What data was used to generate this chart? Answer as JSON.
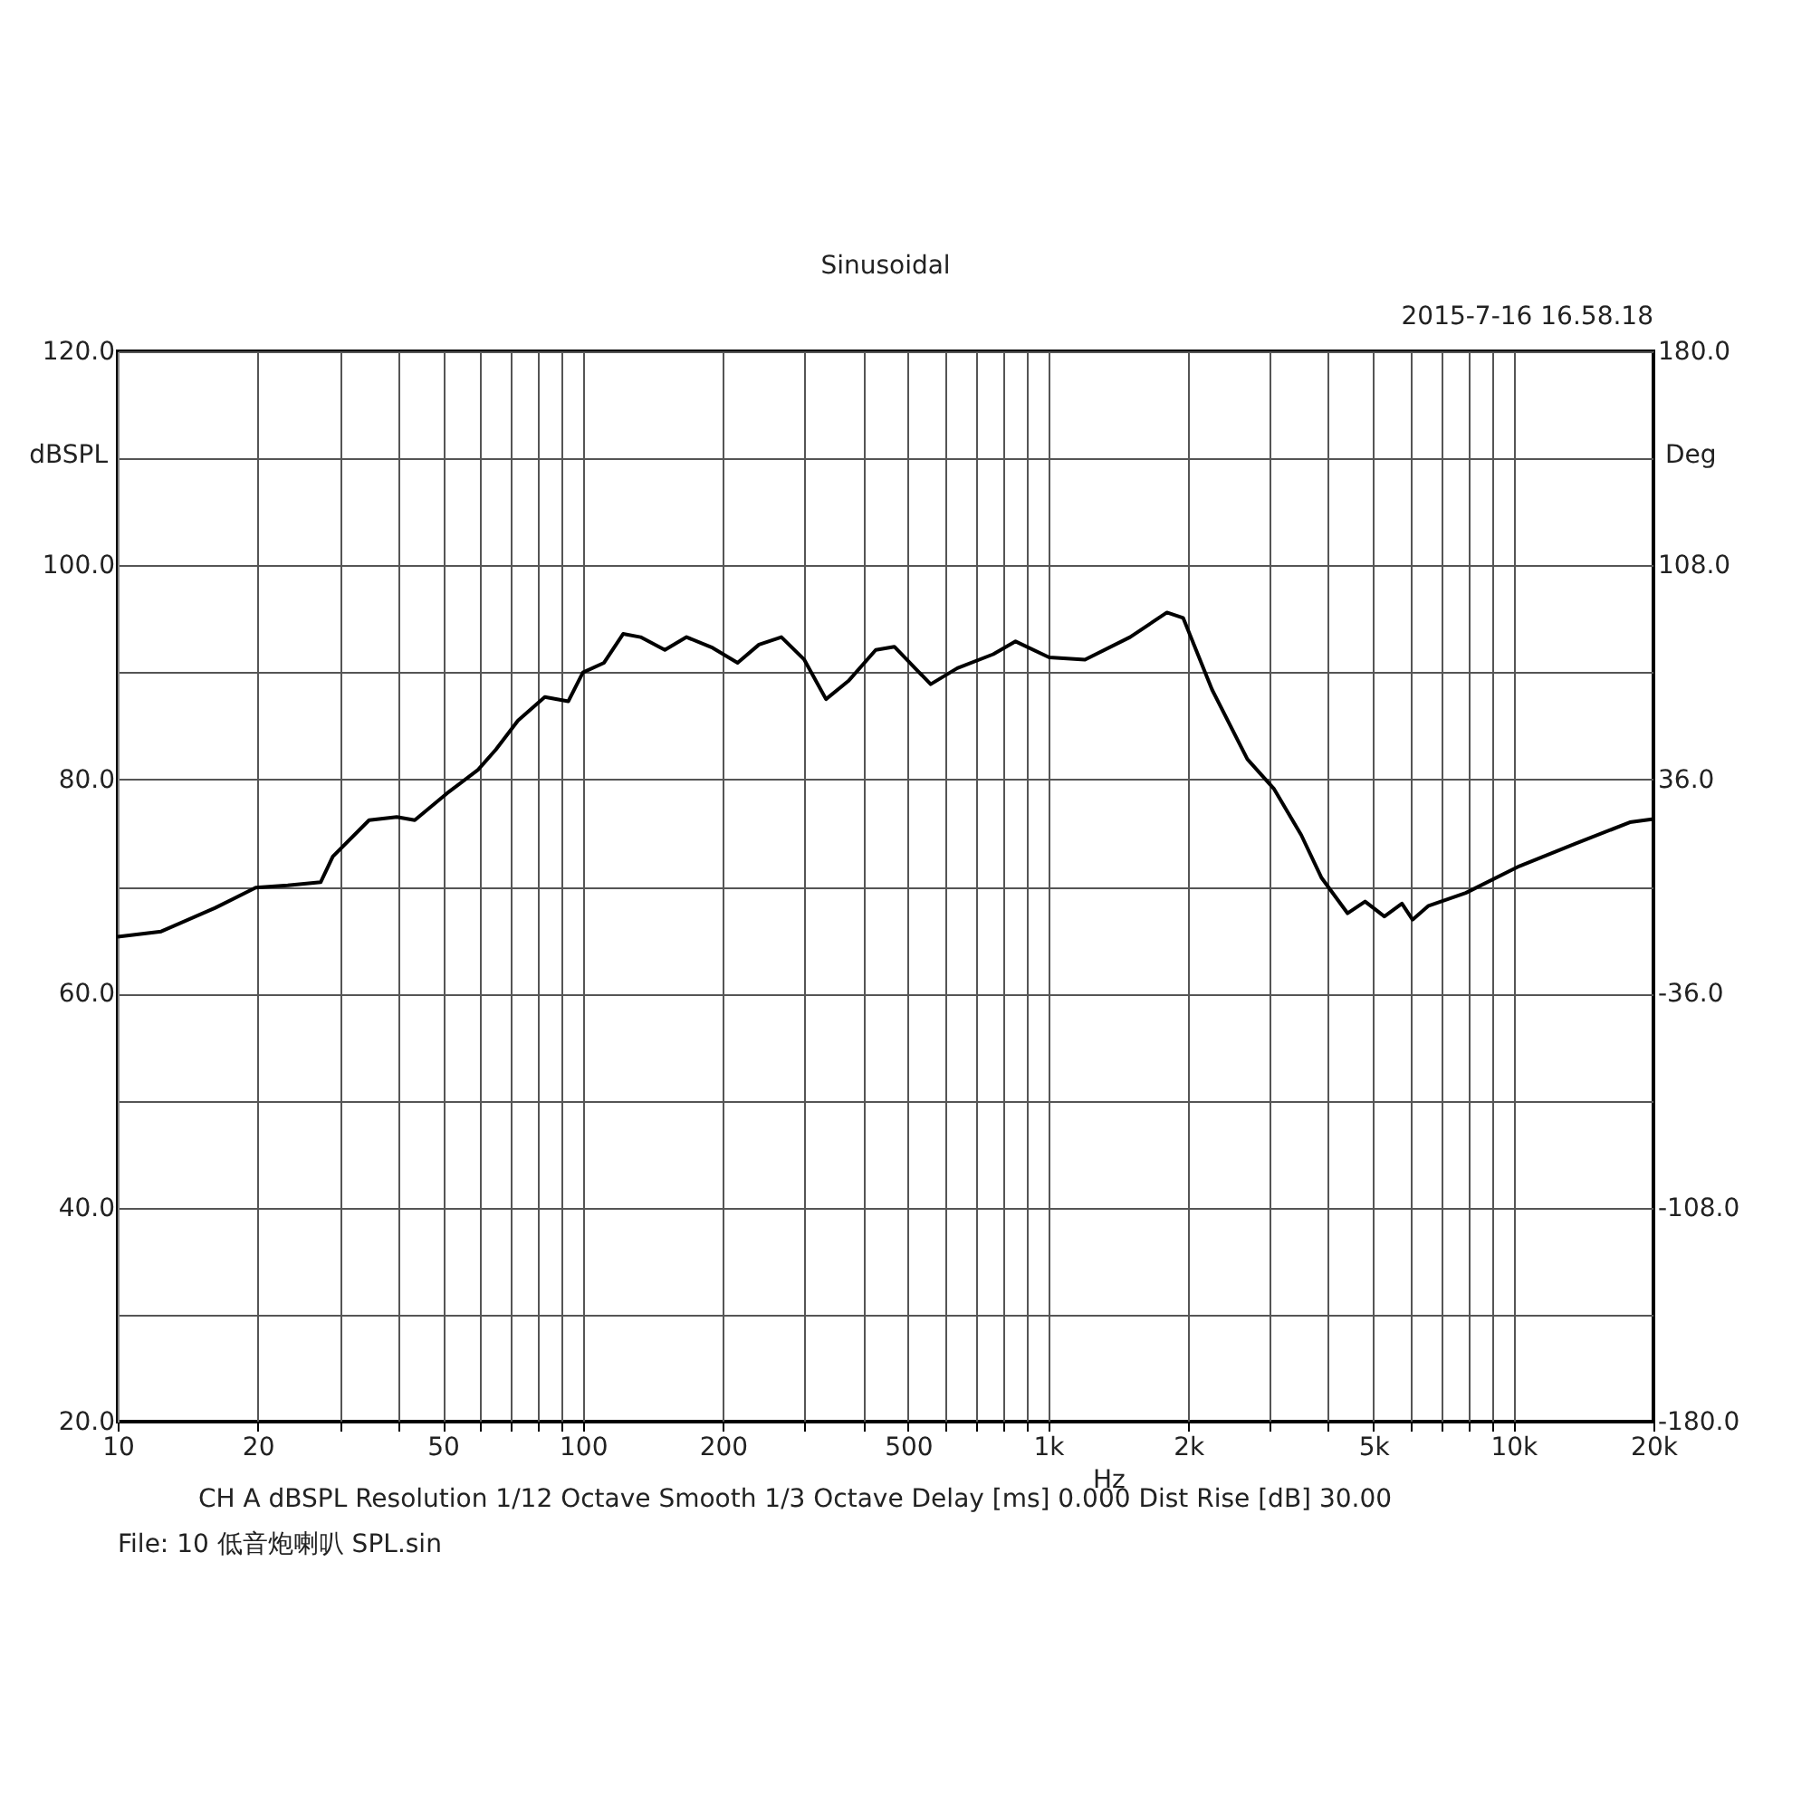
{
  "chart_data": {
    "type": "line",
    "title": "Sinusoidal",
    "xlabel": "Hz",
    "ylabel": "dBSPL",
    "y2label": "Deg",
    "annotations": [
      "2015-7-16 16.58.18",
      "CH A   dBSPL   Resolution 1/12 Octave   Smooth 1/3 Octave   Delay [ms] 0.000   Dist Rise [dB] 30.00",
      "File: 10 低音炮喇叭 SPL.sin"
    ],
    "log": "x",
    "grid": true,
    "legend": false,
    "marker": "none",
    "line_style": "solid",
    "xlim": [
      10,
      20000
    ],
    "xticks": [
      10,
      20,
      {
        "value": 30,
        "label": null
      },
      {
        "value": 40,
        "label": null
      },
      50,
      {
        "value": 60,
        "label": null
      },
      {
        "value": 70,
        "label": null
      },
      {
        "value": 80,
        "label": null
      },
      {
        "value": 90,
        "label": null
      },
      100,
      200,
      {
        "value": 300,
        "label": null
      },
      {
        "value": 400,
        "label": null
      },
      500,
      {
        "value": 600,
        "label": null
      },
      {
        "value": 700,
        "label": null
      },
      {
        "value": 800,
        "label": null
      },
      {
        "value": 900,
        "label": null
      },
      {
        "value": 1000,
        "label": "1k"
      },
      {
        "value": 2000,
        "label": "2k"
      },
      {
        "value": 3000,
        "label": null
      },
      {
        "value": 4000,
        "label": null
      },
      {
        "value": 5000,
        "label": "5k"
      },
      {
        "value": 6000,
        "label": null
      },
      {
        "value": 7000,
        "label": null
      },
      {
        "value": 8000,
        "label": null
      },
      {
        "value": 9000,
        "label": null
      },
      {
        "value": 10000,
        "label": "10k"
      },
      {
        "value": 20000,
        "label": "20k"
      }
    ],
    "ylim": [
      20,
      120
    ],
    "yticks": [
      {
        "value": 20,
        "label": "20.0"
      },
      {
        "value": 30,
        "label": null
      },
      {
        "value": 40,
        "label": "40.0"
      },
      {
        "value": 50,
        "label": null
      },
      {
        "value": 60,
        "label": "60.0"
      },
      {
        "value": 70,
        "label": null
      },
      {
        "value": 80,
        "label": "80.0"
      },
      {
        "value": 90,
        "label": null
      },
      {
        "value": 100,
        "label": "100.0"
      },
      {
        "value": 110,
        "label": null
      },
      {
        "value": 120,
        "label": "120.0"
      }
    ],
    "y2lim": [
      -180,
      180
    ],
    "y2ticks": [
      {
        "value": -180,
        "label": "-180.0"
      },
      {
        "value": -108,
        "label": "-108.0"
      },
      {
        "value": -36,
        "label": "-36.0"
      },
      {
        "value": 36,
        "label": "36.0"
      },
      {
        "value": 108,
        "label": "108.0"
      },
      {
        "value": 180,
        "label": "180.0"
      }
    ],
    "series": [
      {
        "color": "#000000",
        "x": [
          10,
          12.4,
          16.2,
          19.8,
          23.2,
          27.3,
          29,
          34.7,
          39.8,
          43.5,
          51,
          59.5,
          65,
          72.5,
          82.8,
          93,
          100,
          111,
          122,
          133,
          150,
          167,
          190,
          215,
          239,
          267,
          299,
          333,
          372,
          426,
          467,
          559,
          638,
          762,
          851,
          1005,
          1200,
          1500,
          1800,
          1950,
          2250,
          2680,
          3060,
          3500,
          3870,
          4400,
          4800,
          5280,
          5760,
          6070,
          6570,
          7900,
          10300,
          13600,
          17800,
          20000
        ],
        "values": [
          65.3,
          65.8,
          68.0,
          69.9,
          70.1,
          70.4,
          72.8,
          76.2,
          76.5,
          76.2,
          78.7,
          80.9,
          82.8,
          85.5,
          87.7,
          87.3,
          90.0,
          90.9,
          93.6,
          93.3,
          92.1,
          93.3,
          92.3,
          90.9,
          92.6,
          93.3,
          91.2,
          87.5,
          89.2,
          92.1,
          92.4,
          88.9,
          90.4,
          91.7,
          92.9,
          91.4,
          91.2,
          93.3,
          95.6,
          95.1,
          88.4,
          81.9,
          79.1,
          74.8,
          70.8,
          67.5,
          68.6,
          67.2,
          68.4,
          66.9,
          68.2,
          69.4,
          71.9,
          74.0,
          76.0,
          76.3
        ]
      }
    ]
  }
}
